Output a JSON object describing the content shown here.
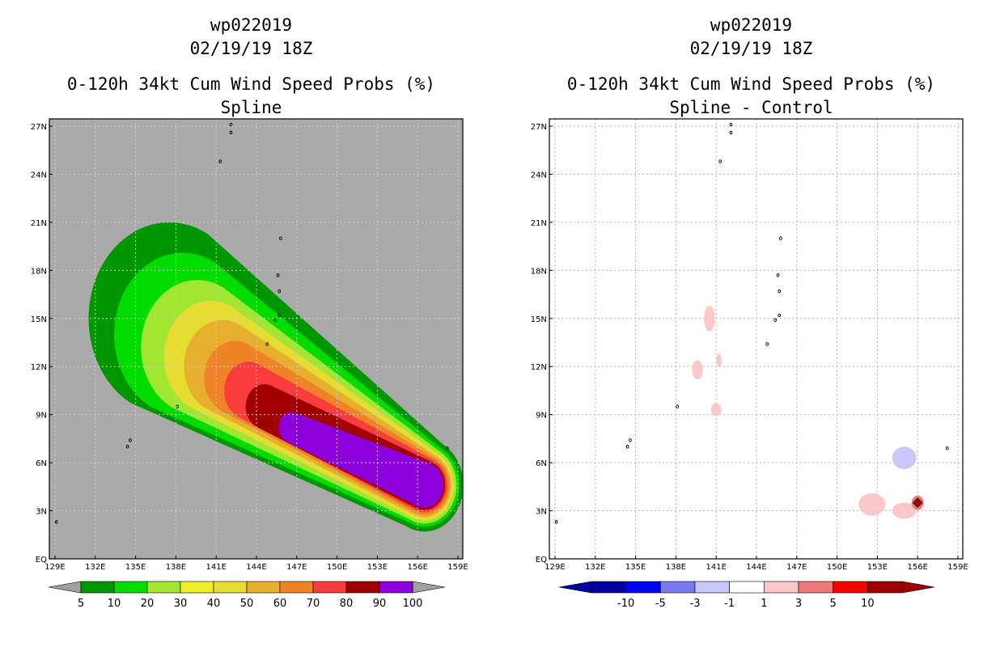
{
  "panels": [
    {
      "storm_id": "wp022019",
      "datetime": "02/19/19 18Z",
      "product": "0-120h 34kt Cum Wind Speed Probs (%)",
      "subtitle": "Spline"
    },
    {
      "storm_id": "wp022019",
      "datetime": "02/19/19 18Z",
      "product": "0-120h 34kt Cum Wind Speed Probs (%)",
      "subtitle": "Spline - Control"
    }
  ],
  "chart_data": [
    {
      "type": "heatmap",
      "title": "0-120h 34kt Cum Wind Speed Probs (%) - Spline",
      "x_ticks": [
        "129E",
        "132E",
        "135E",
        "138E",
        "141E",
        "144E",
        "147E",
        "150E",
        "153E",
        "156E",
        "159E"
      ],
      "y_ticks": [
        "EQ",
        "3N",
        "6N",
        "9N",
        "12N",
        "15N",
        "18N",
        "21N",
        "24N",
        "27N"
      ],
      "xlim": [
        129,
        159
      ],
      "ylim": [
        0,
        27
      ],
      "background_color": "#aaaaaa",
      "levels": [
        5,
        10,
        20,
        30,
        40,
        50,
        60,
        70,
        80,
        90,
        100
      ],
      "level_labels": [
        "5",
        "10",
        "20",
        "30",
        "40",
        "50",
        "60",
        "70",
        "80",
        "90",
        "100"
      ],
      "colors": [
        "#009600",
        "#00dc00",
        "#a0e632",
        "#e6dc32",
        "#e6af2d",
        "#f08228",
        "#fa3c3c",
        "#a00000",
        "#8c00dc",
        "#f0f0f0"
      ],
      "colorbar_colors": [
        "#009600",
        "#00dc00",
        "#a0e632",
        "#f0f028",
        "#e6dc32",
        "#e6af2d",
        "#f08228",
        "#fa3c3c",
        "#a00000",
        "#8c00dc"
      ],
      "track_axis": {
        "start": [
          146.5,
          8.3
        ],
        "end": [
          156.5,
          4.6
        ]
      }
    },
    {
      "type": "heatmap",
      "title": "0-120h 34kt Cum Wind Speed Probs (%) - Spline - Control",
      "x_ticks": [
        "129E",
        "132E",
        "135E",
        "138E",
        "141E",
        "144E",
        "147E",
        "150E",
        "153E",
        "156E",
        "159E"
      ],
      "y_ticks": [
        "EQ",
        "3N",
        "6N",
        "9N",
        "12N",
        "15N",
        "18N",
        "21N",
        "24N",
        "27N"
      ],
      "xlim": [
        129,
        159
      ],
      "ylim": [
        0,
        27
      ],
      "levels": [
        -10,
        -5,
        -3,
        -1,
        1,
        3,
        5,
        10
      ],
      "level_labels": [
        "-10",
        "-5",
        "-3",
        "-1",
        "1",
        "3",
        "5",
        "10"
      ],
      "colorbar_colors": [
        "#0000a0",
        "#0000ff",
        "#7878f0",
        "#c8c8fa",
        "#ffffff",
        "#fac8c8",
        "#f07878",
        "#ff0000",
        "#a00000"
      ],
      "patches": [
        {
          "lon": 140.5,
          "lat": 15.0,
          "value": 2
        },
        {
          "lon": 139.6,
          "lat": 11.8,
          "value": 2
        },
        {
          "lon": 141.2,
          "lat": 12.4,
          "value": 2
        },
        {
          "lon": 141.0,
          "lat": 9.3,
          "value": 2
        },
        {
          "lon": 155.0,
          "lat": 6.3,
          "value": -2
        },
        {
          "lon": 152.6,
          "lat": 3.4,
          "value": 2
        },
        {
          "lon": 155.0,
          "lat": 3.0,
          "value": 2
        },
        {
          "lon": 156.0,
          "lat": 3.5,
          "value": 12
        }
      ]
    }
  ]
}
